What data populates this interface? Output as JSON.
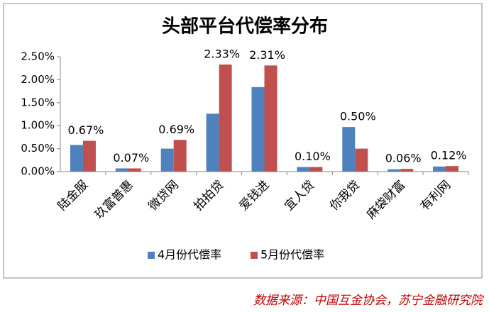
{
  "chart_data": {
    "type": "bar",
    "title": "头部平台代偿率分布",
    "categories": [
      "陆金服",
      "玖富普惠",
      "微贷网",
      "拍拍贷",
      "爱钱进",
      "宜人贷",
      "你我贷",
      "麻袋财富",
      "有利网"
    ],
    "series": [
      {
        "name": "4月份代偿率",
        "color": "#4f81bd",
        "values": [
          0.58,
          0.07,
          0.5,
          1.26,
          1.84,
          0.1,
          0.97,
          0.05,
          0.11
        ]
      },
      {
        "name": "5月份代偿率",
        "color": "#c0504d",
        "values": [
          0.67,
          0.07,
          0.69,
          2.33,
          2.31,
          0.1,
          0.5,
          0.06,
          0.12
        ],
        "value_labels": [
          "0.67%",
          "0.07%",
          "0.69%",
          "2.33%",
          "2.31%",
          "0.10%",
          "0.50%",
          "0.06%",
          "0.12%"
        ]
      }
    ],
    "ylim": [
      0,
      2.5
    ],
    "yticks": [
      {
        "value": 0,
        "label": "0.00%"
      },
      {
        "value": 0.5,
        "label": "0.50%"
      },
      {
        "value": 1,
        "label": "1.00%"
      },
      {
        "value": 1.5,
        "label": "1.50%"
      },
      {
        "value": 2,
        "label": "2.00%"
      },
      {
        "value": 2.5,
        "label": "2.50%"
      }
    ],
    "legend": "bottom",
    "source": "数据来源：中国互金协会，苏宁金融研究院"
  }
}
